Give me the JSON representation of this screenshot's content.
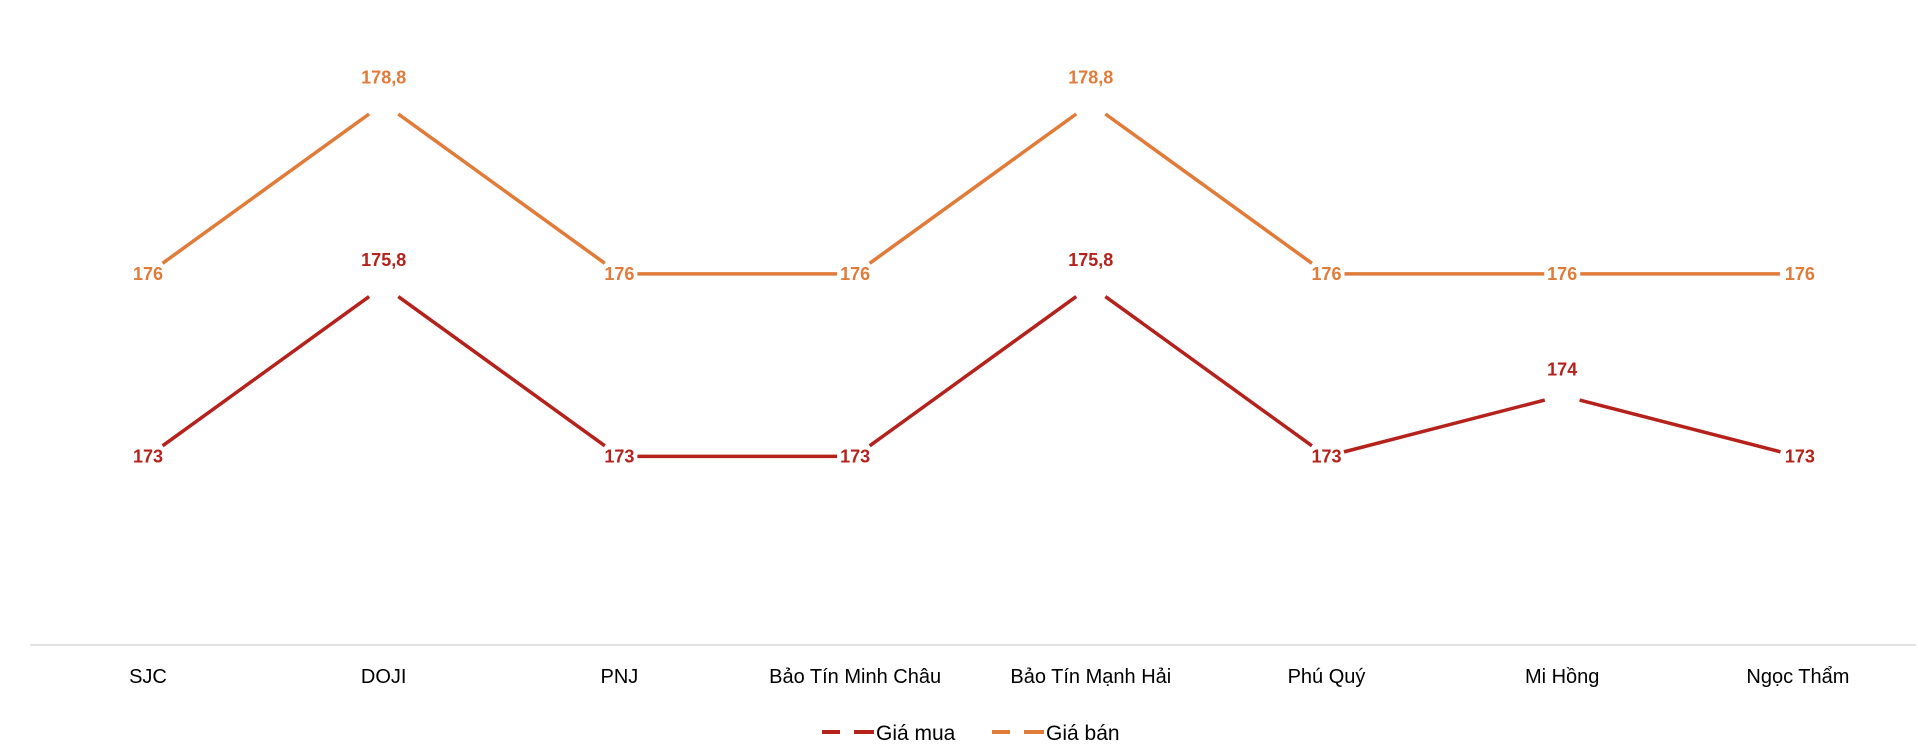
{
  "chart_data": {
    "type": "line",
    "title": "",
    "xlabel": "",
    "ylabel": "",
    "categories": [
      "SJC",
      "DOJI",
      "PNJ",
      "Bảo Tín Minh Châu",
      "Bảo Tín Mạnh Hải",
      "Phú Quý",
      "Mi Hồng",
      "Ngọc Thẩm"
    ],
    "series": [
      {
        "name": "Giá mua",
        "color": "#B5211B",
        "values": [
          173,
          175.8,
          173,
          173,
          175.8,
          173,
          174,
          173
        ],
        "labels": [
          "173",
          "175,8",
          "173",
          "173",
          "175,8",
          "173",
          "174",
          "173"
        ]
      },
      {
        "name": "Giá bán",
        "color": "#E07B39",
        "values": [
          176,
          178.8,
          176,
          176,
          178.8,
          176,
          176,
          176
        ],
        "labels": [
          "176",
          "178,8",
          "176",
          "176",
          "178,8",
          "176",
          "176",
          "176"
        ]
      }
    ],
    "ylim": [
      169.9,
      180.5
    ],
    "grid": false,
    "y_axis_visible": false,
    "legend": "bottom-center",
    "axis_color": "#D9D9D9"
  }
}
